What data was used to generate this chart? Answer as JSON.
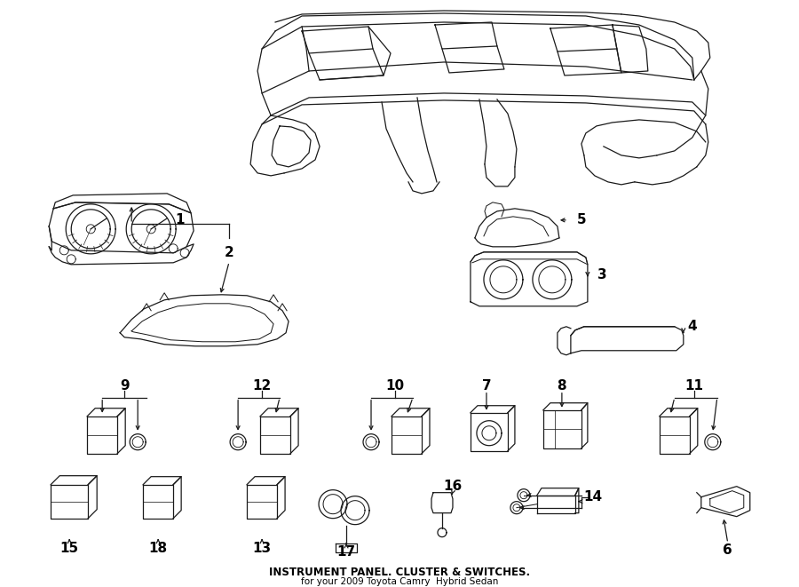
{
  "title": "INSTRUMENT PANEL. CLUSTER & SWITCHES.",
  "subtitle": "for your 2009 Toyota Camry  Hybrid Sedan",
  "bg_color": "#ffffff",
  "line_color": "#1a1a1a",
  "text_color": "#000000",
  "fig_width": 9.0,
  "fig_height": 6.61,
  "dpi": 100
}
